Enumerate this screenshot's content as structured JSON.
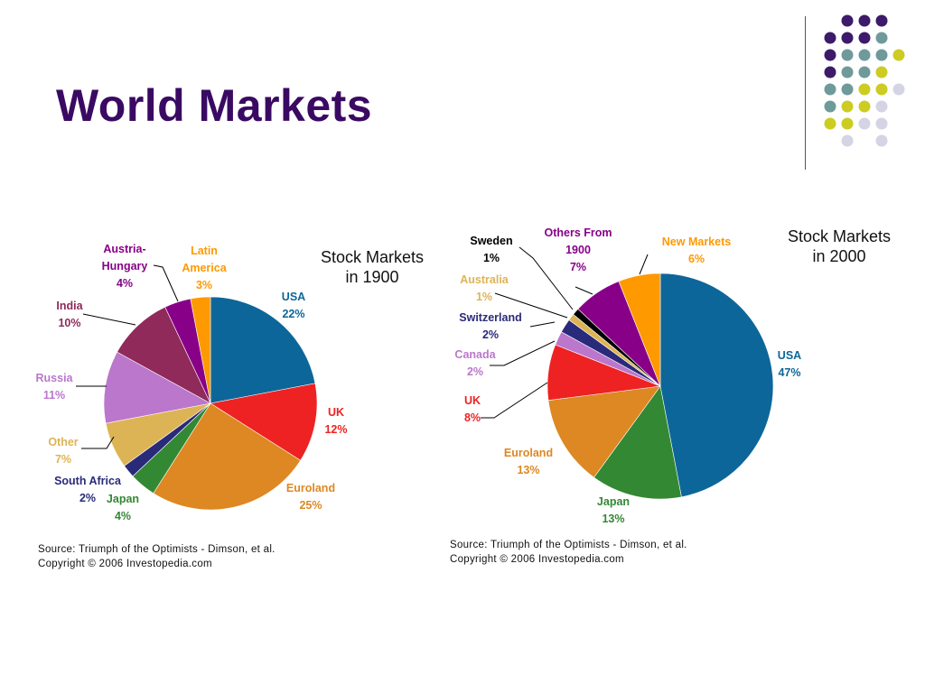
{
  "slide": {
    "title": "World Markets"
  },
  "colors": {
    "title": "#3a0a63",
    "dots_purple": "#3d1a6a",
    "dots_teal": "#6f9a9a",
    "dots_yellow": "#cccc22",
    "dots_lavender": "#d4d4e4"
  },
  "chart_data": [
    {
      "type": "pie",
      "title": [
        "Stock Markets",
        "in 1900"
      ],
      "source": [
        "Source: Triumph of the Optimists - Dimson, et al.",
        "Copyright © 2006 Investopedia.com"
      ],
      "slices": [
        {
          "label": [
            "USA"
          ],
          "value": 22,
          "value_label": "22%",
          "color": "#0d6699"
        },
        {
          "label": [
            "UK"
          ],
          "value": 12,
          "value_label": "12%",
          "color": "#ee2222"
        },
        {
          "label": [
            "Euroland"
          ],
          "value": 25,
          "value_label": "25%",
          "color": "#dd8822"
        },
        {
          "label": [
            "Japan"
          ],
          "value": 4,
          "value_label": "4%",
          "color": "#338833"
        },
        {
          "label": [
            "South Africa"
          ],
          "value": 2,
          "value_label": "2%",
          "color": "#2a2a7a"
        },
        {
          "label": [
            "Other"
          ],
          "value": 7,
          "value_label": "7%",
          "color": "#ddb455"
        },
        {
          "label": [
            "Russia"
          ],
          "value": 11,
          "value_label": "11%",
          "color": "#bb77cc"
        },
        {
          "label": [
            "India"
          ],
          "value": 10,
          "value_label": "10%",
          "color": "#8f2a5a"
        },
        {
          "label": [
            "Austria-",
            "Hungary"
          ],
          "value": 4,
          "value_label": "4%",
          "color": "#880088"
        },
        {
          "label": [
            "Latin",
            "America"
          ],
          "value": 3,
          "value_label": "3%",
          "color": "#ff9900"
        }
      ]
    },
    {
      "type": "pie",
      "title": [
        "Stock Markets",
        "in 2000"
      ],
      "source": [
        "Source: Triumph of the Optimists - Dimson, et al.",
        "Copyright © 2006 Investopedia.com"
      ],
      "slices": [
        {
          "label": [
            "USA"
          ],
          "value": 47,
          "value_label": "47%",
          "color": "#0d6699"
        },
        {
          "label": [
            "Japan"
          ],
          "value": 13,
          "value_label": "13%",
          "color": "#338833"
        },
        {
          "label": [
            "Euroland"
          ],
          "value": 13,
          "value_label": "13%",
          "color": "#dd8822"
        },
        {
          "label": [
            "UK"
          ],
          "value": 8,
          "value_label": "8%",
          "color": "#ee2222"
        },
        {
          "label": [
            "Canada"
          ],
          "value": 2,
          "value_label": "2%",
          "color": "#bb77cc"
        },
        {
          "label": [
            "Switzerland"
          ],
          "value": 2,
          "value_label": "2%",
          "color": "#2a2a7a"
        },
        {
          "label": [
            "Australia"
          ],
          "value": 1,
          "value_label": "1%",
          "color": "#ddb455"
        },
        {
          "label": [
            "Sweden"
          ],
          "value": 1,
          "value_label": "1%",
          "color": "#000000"
        },
        {
          "label": [
            "Others From",
            "1900"
          ],
          "value": 7,
          "value_label": "7%",
          "color": "#880088"
        },
        {
          "label": [
            "New Markets"
          ],
          "value": 6,
          "value_label": "6%",
          "color": "#ff9900"
        }
      ]
    }
  ]
}
